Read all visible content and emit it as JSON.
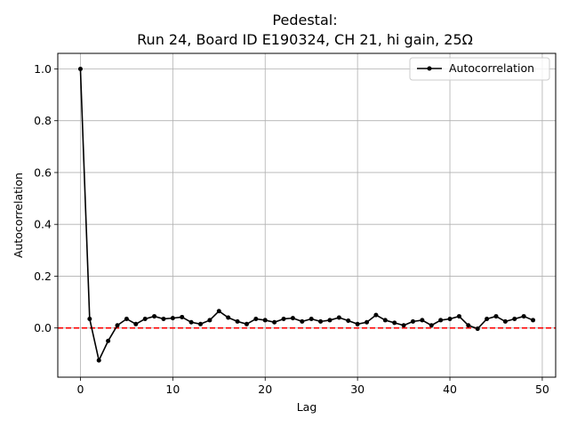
{
  "chart_data": {
    "type": "line",
    "title_line1": "Pedestal:",
    "title_line2": "Run 24, Board ID E190324, CH 21, hi gain, 25Ω",
    "xlabel": "Lag",
    "ylabel": "Autocorrelation",
    "xlim": [
      -2.45,
      51.45
    ],
    "ylim": [
      -0.19,
      1.06
    ],
    "xticks": [
      0,
      10,
      20,
      30,
      40,
      50
    ],
    "yticks": [
      0.0,
      0.2,
      0.4,
      0.6,
      0.8,
      1.0
    ],
    "xtick_labels": [
      "0",
      "10",
      "20",
      "30",
      "40",
      "50"
    ],
    "ytick_labels": [
      "0.0",
      "0.2",
      "0.4",
      "0.6",
      "0.8",
      "1.0"
    ],
    "grid": true,
    "legend_position": "top-right",
    "series": [
      {
        "name": "Autocorrelation",
        "color": "#000000",
        "x": [
          0,
          1,
          2,
          3,
          4,
          5,
          6,
          7,
          8,
          9,
          10,
          11,
          12,
          13,
          14,
          15,
          16,
          17,
          18,
          19,
          20,
          21,
          22,
          23,
          24,
          25,
          26,
          27,
          28,
          29,
          30,
          31,
          32,
          33,
          34,
          35,
          36,
          37,
          38,
          39,
          40,
          41,
          42,
          43,
          44,
          45,
          46,
          47,
          48,
          49
        ],
        "values": [
          1.0,
          0.035,
          -0.125,
          -0.05,
          0.01,
          0.035,
          0.015,
          0.035,
          0.045,
          0.035,
          0.038,
          0.042,
          0.022,
          0.015,
          0.03,
          0.065,
          0.04,
          0.025,
          0.015,
          0.035,
          0.03,
          0.022,
          0.035,
          0.038,
          0.025,
          0.035,
          0.025,
          0.03,
          0.04,
          0.028,
          0.015,
          0.022,
          0.05,
          0.03,
          0.02,
          0.01,
          0.025,
          0.03,
          0.01,
          0.03,
          0.035,
          0.045,
          0.01,
          -0.003,
          0.035,
          0.045,
          0.025,
          0.035,
          0.045,
          0.03
        ]
      }
    ],
    "reference_line": {
      "y": 0.0,
      "color": "#ff0000",
      "style": "dashed"
    }
  }
}
